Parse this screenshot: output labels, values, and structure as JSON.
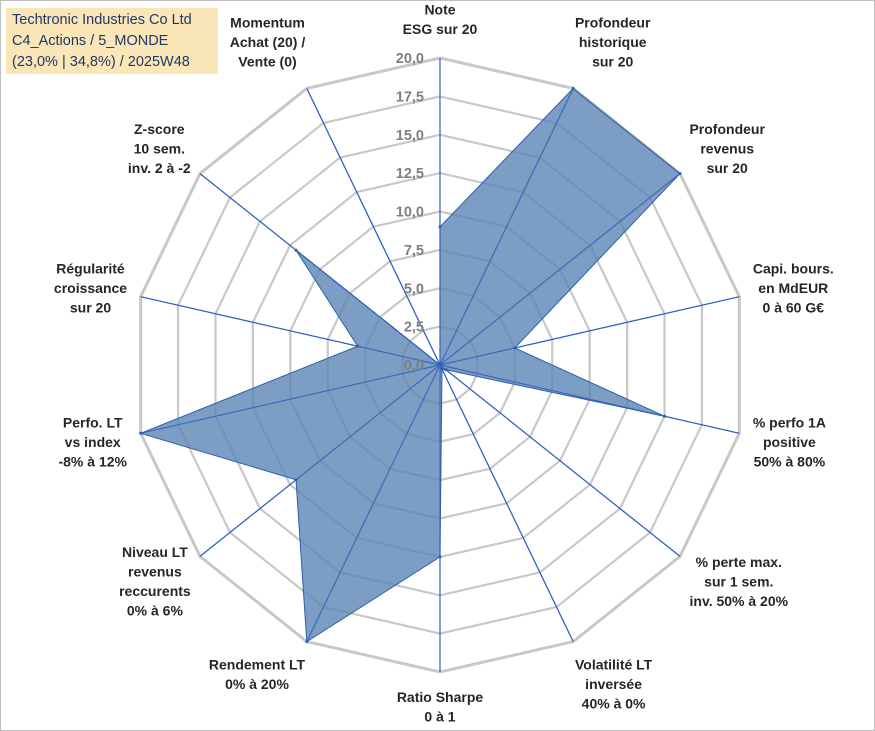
{
  "title": {
    "line1": "Techtronic Industries Co Ltd",
    "line2": "C4_Actions / 5_MONDE",
    "line3": "(23,0% | 34,8%) / 2025W48"
  },
  "chart_data": {
    "type": "radar",
    "title": "Techtronic Industries Co Ltd",
    "rlim": [
      0,
      20
    ],
    "ticks": [
      0,
      2.5,
      5,
      7.5,
      10,
      12.5,
      15,
      17.5,
      20
    ],
    "tick_labels": [
      "0,0",
      "2,5",
      "5,0",
      "7,5",
      "10,0",
      "12,5",
      "15,0",
      "17,5",
      "20,0"
    ],
    "axes": [
      {
        "lines": [
          "Note",
          "ESG sur 20"
        ],
        "value": 9.0
      },
      {
        "lines": [
          "Profondeur",
          "historique",
          "sur 20"
        ],
        "value": 20.0
      },
      {
        "lines": [
          "Profondeur",
          "revenus",
          "sur 20"
        ],
        "value": 20.0
      },
      {
        "lines": [
          "Capi. bours.",
          "en MdEUR",
          "0 à 60 G€"
        ],
        "value": 5.0
      },
      {
        "lines": [
          "% perfo 1A",
          "positive",
          "50% à 80%"
        ],
        "value": 15.0
      },
      {
        "lines": [
          "% perte max.",
          "sur 1 sem.",
          "inv. 50% à 20%"
        ],
        "value": 0.5
      },
      {
        "lines": [
          "Volatilité LT",
          "inversée",
          "40% à 0%"
        ],
        "value": 0.3
      },
      {
        "lines": [
          "Ratio Sharpe",
          "0 à 1"
        ],
        "value": 12.5
      },
      {
        "lines": [
          "Rendement LT",
          "0% à 20%"
        ],
        "value": 20.0
      },
      {
        "lines": [
          "Niveau LT",
          "revenus",
          "reccurents",
          "0% à 6%"
        ],
        "value": 12.0
      },
      {
        "lines": [
          "Perfo. LT",
          "vs index",
          "-8% à 12%"
        ],
        "value": 20.0
      },
      {
        "lines": [
          "Régularité",
          "croissance",
          "sur 20"
        ],
        "value": 5.5
      },
      {
        "lines": [
          "Z-score",
          "10 sem.",
          "inv. 2 à -2"
        ],
        "value": 12.0
      },
      {
        "lines": [
          "Momentum",
          "Achat (20) /",
          "Vente (0)"
        ],
        "value": 0.0
      }
    ],
    "series": [
      {
        "name": "Techtronic Industries Co Ltd"
      }
    ],
    "colors": {
      "fill": "#5b85b5",
      "line": "#2e5fa8",
      "spoke": "#2f5fbf",
      "grid": "#c8c8c8"
    }
  }
}
